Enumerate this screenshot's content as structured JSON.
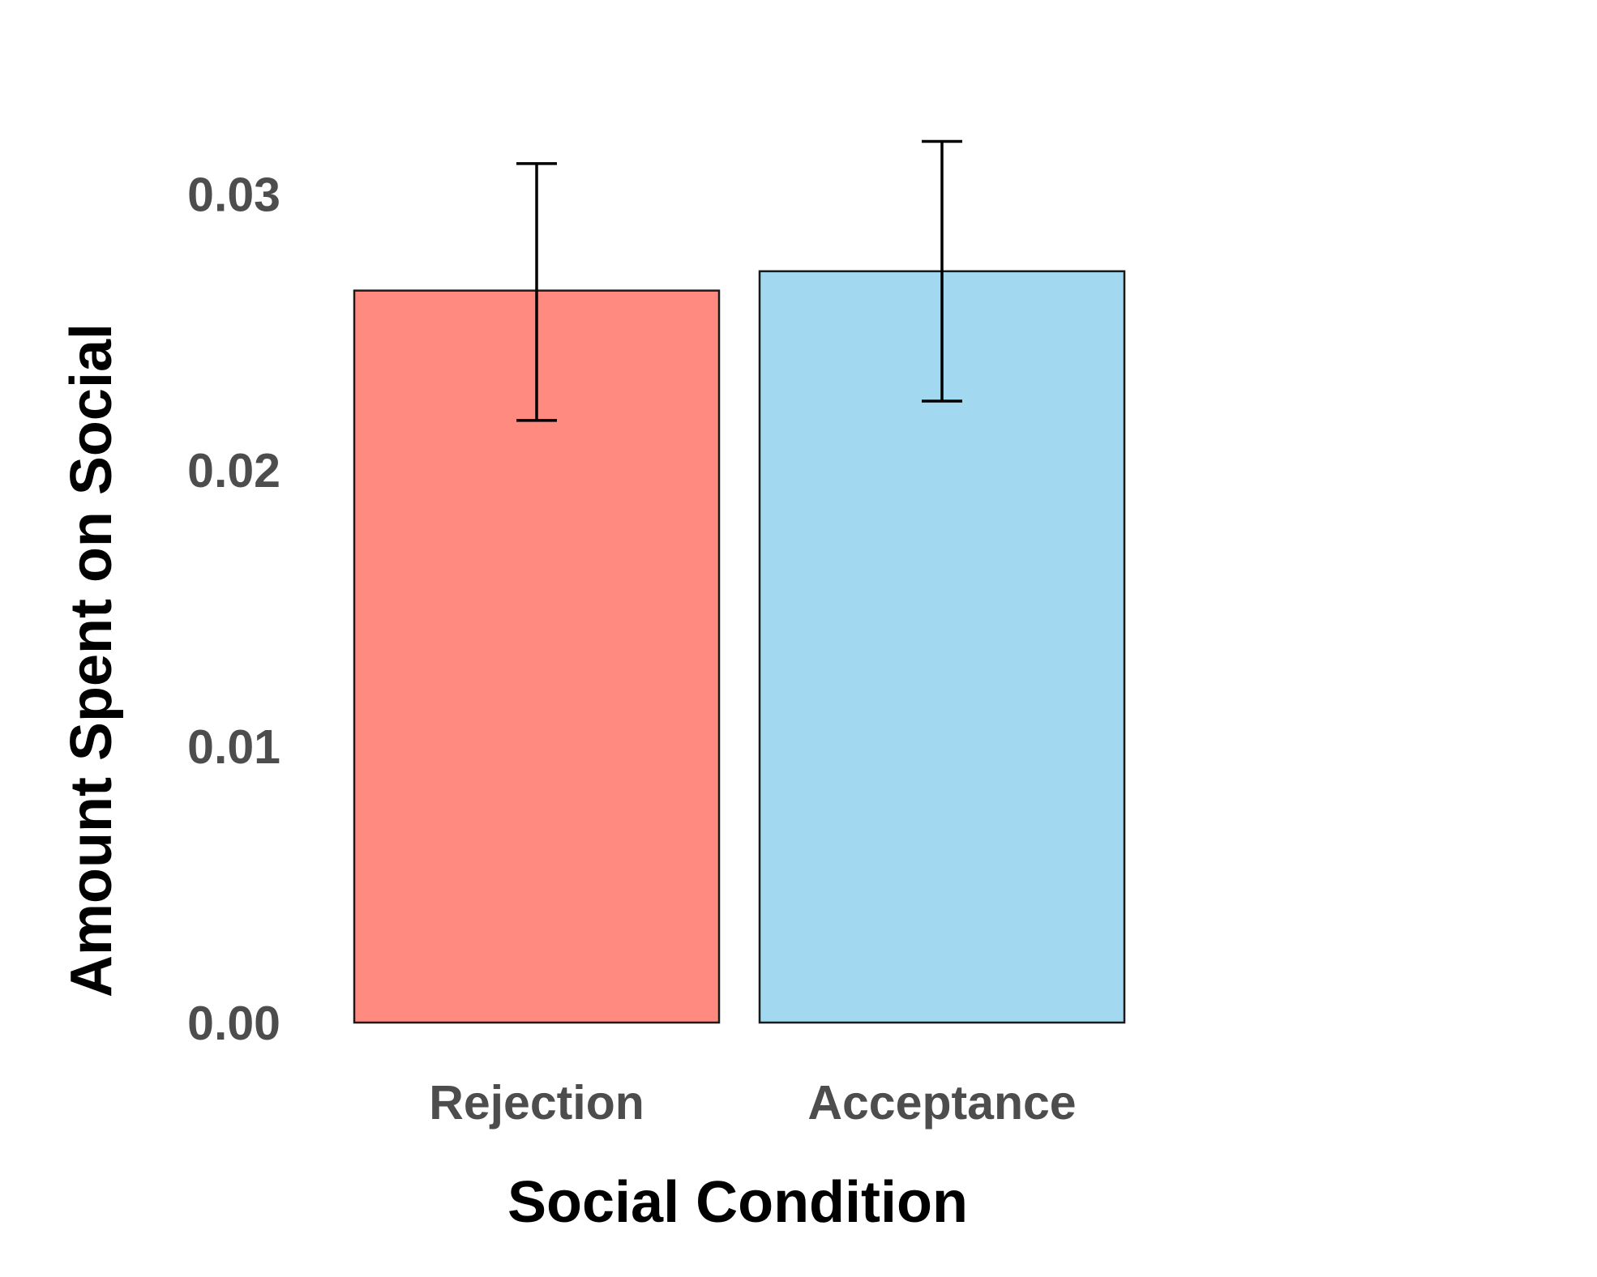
{
  "chart_data": {
    "type": "bar",
    "xlabel": "Social Condition",
    "ylabel": "Amount Spent on Social",
    "categories": [
      "Rejection",
      "Acceptance"
    ],
    "values": [
      0.0265,
      0.0272
    ],
    "error_low": [
      0.0218,
      0.0225
    ],
    "error_high": [
      0.0311,
      0.0319
    ],
    "colors": [
      "#ff8b80",
      "#a3d8f1"
    ],
    "ylim": [
      0,
      0.0335
    ],
    "yticks": [
      0.0,
      0.01,
      0.02,
      0.03
    ],
    "ytick_labels": [
      "0.00",
      "0.01",
      "0.02",
      "0.03"
    ],
    "grid": false,
    "legend": "none"
  }
}
